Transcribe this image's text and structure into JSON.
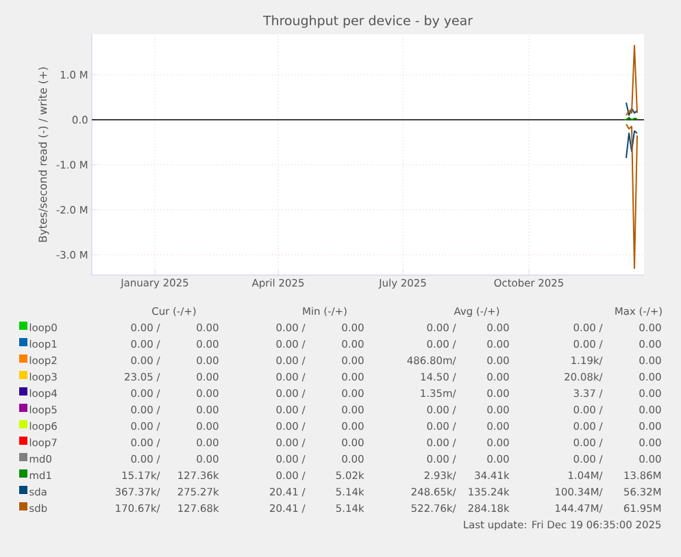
{
  "chart_data": {
    "type": "line",
    "title": "Throughput per device - by year",
    "ylabel": "Bytes/second read (-) / write (+)",
    "x": [
      "2025-12-09",
      "2025-12-11",
      "2025-12-13",
      "2025-12-15",
      "2025-12-17",
      "2025-12-19"
    ],
    "xlim": [
      "2024-11-16",
      "2025-12-24"
    ],
    "xticks": [
      {
        "value": "2025-01-01",
        "label": "January 2025"
      },
      {
        "value": "2025-04-01",
        "label": "April 2025"
      },
      {
        "value": "2025-07-01",
        "label": "July 2025"
      },
      {
        "value": "2025-10-01",
        "label": "October 2025"
      }
    ],
    "ylim": [
      -3450000,
      1900000
    ],
    "yticks": [
      {
        "value": -3000000,
        "label": "-3.0 M"
      },
      {
        "value": -2000000,
        "label": "-2.0 M"
      },
      {
        "value": -1000000,
        "label": "-1.0 M"
      },
      {
        "value": 0,
        "label": "0.0"
      },
      {
        "value": 1000000,
        "label": "1.0 M"
      }
    ],
    "grid": true,
    "legend": "bottom",
    "ref_lines": [
      {
        "axis": "y",
        "value": 0,
        "color": "#000000"
      }
    ],
    "series": [
      {
        "name": "loop0",
        "color": "#00cc00",
        "values": [
          null,
          null,
          null,
          null,
          null,
          null
        ]
      },
      {
        "name": "loop1",
        "color": "#0066b3",
        "values": [
          null,
          null,
          null,
          null,
          null,
          null
        ]
      },
      {
        "name": "loop2",
        "color": "#ff8000",
        "values": [
          null,
          null,
          null,
          null,
          null,
          null
        ]
      },
      {
        "name": "loop3",
        "color": "#ffcc00",
        "values": [
          null,
          null,
          null,
          null,
          null,
          null
        ]
      },
      {
        "name": "loop4",
        "color": "#330099",
        "values": [
          null,
          null,
          null,
          null,
          null,
          null
        ]
      },
      {
        "name": "loop5",
        "color": "#990099",
        "values": [
          null,
          null,
          null,
          null,
          null,
          null
        ]
      },
      {
        "name": "loop6",
        "color": "#ccff00",
        "values": [
          null,
          null,
          null,
          null,
          null,
          null
        ]
      },
      {
        "name": "loop7",
        "color": "#ff0000",
        "values": [
          null,
          null,
          null,
          null,
          null,
          null
        ]
      },
      {
        "name": "md0",
        "color": "#808080",
        "values": [
          null,
          null,
          null,
          null,
          null,
          null
        ]
      },
      {
        "name": "md1",
        "color": "#008f00",
        "values": [
          0,
          0,
          50000,
          0,
          30000,
          20000
        ]
      },
      {
        "name": "sda",
        "color": "#00487d",
        "x": [
          "2025-12-11",
          "2025-12-13",
          "2025-12-15",
          "2025-12-17",
          "2025-12-19"
        ],
        "values": [
          380000,
          100000,
          250000,
          150000,
          200000
        ]
      },
      {
        "color": "#01487d",
        "x": [
          "2025-12-11",
          "2025-12-13",
          "2025-12-15",
          "2025-12-17",
          "2025-12-19"
        ],
        "values": [
          -850000,
          -300000,
          -700000,
          -250000,
          -300000
        ]
      },
      {
        "name": "sdb",
        "color": "#b35a00",
        "x": [
          "2025-12-11",
          "2025-12-13",
          "2025-12-15",
          "2025-12-17",
          "2025-12-19"
        ],
        "values": [
          100000,
          200000,
          150000,
          1650000,
          150000
        ]
      },
      {
        "color": "#b45a00",
        "x": [
          "2025-12-11",
          "2025-12-13",
          "2025-12-15",
          "2025-12-17",
          "2025-12-19"
        ],
        "values": [
          -100000,
          -200000,
          -150000,
          -3300000,
          -350000
        ]
      }
    ],
    "annotations": [
      "Cur (-/+)",
      "Min (-/+)",
      "Avg (-/+)",
      "Max (-/+)",
      "0.00 /",
      "0.00",
      "0.00 /",
      "0.00",
      "0.00 /",
      "0.00",
      "0.00 /",
      "0.00",
      "0.00 /",
      "0.00",
      "0.00 /",
      "0.00",
      "0.00 /",
      "0.00",
      "0.00 /",
      "0.00",
      "0.00 /",
      "0.00",
      "0.00 /",
      "0.00",
      "486.80m/",
      "0.00",
      "1.19k/",
      "0.00",
      "23.05 /",
      "0.00",
      "0.00 /",
      "0.00",
      "14.50 /",
      "0.00",
      "20.08k/",
      "0.00",
      "0.00 /",
      "0.00",
      "0.00 /",
      "0.00",
      "1.35m/",
      "0.00",
      "3.37 /",
      "0.00",
      "0.00 /",
      "0.00",
      "0.00 /",
      "0.00",
      "0.00 /",
      "0.00",
      "0.00 /",
      "0.00",
      "0.00 /",
      "0.00",
      "0.00 /",
      "0.00",
      "0.00 /",
      "0.00",
      "0.00 /",
      "0.00",
      "0.00 /",
      "0.00",
      "0.00 /",
      "0.00",
      "0.00 /",
      "0.00",
      "0.00 /",
      "0.00",
      "0.00 /",
      "0.00",
      "0.00 /",
      "0.00",
      "0.00 /",
      "0.00",
      "0.00 /",
      "0.00",
      "15.17k/",
      "127.36k",
      "0.00 /",
      "5.02k",
      "2.93k/",
      "34.41k",
      "1.04M/",
      "13.86M",
      "367.37k/",
      "275.27k",
      "20.41 /",
      "5.14k",
      "248.65k/",
      "135.24k",
      "100.34M/",
      "56.32M",
      "170.67k/",
      "127.68k",
      "20.41 /",
      "5.14k",
      "522.76k/",
      "284.18k",
      "144.47M/",
      "61.95M",
      "Last update: Fri Dec 19 06:35:00 2025"
    ]
  }
}
